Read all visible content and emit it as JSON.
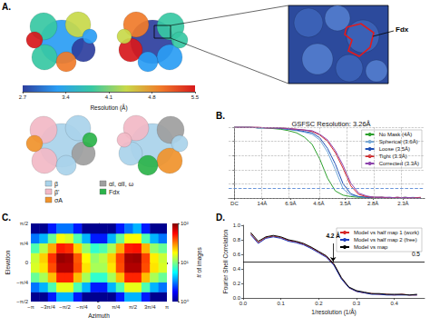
{
  "panel_a": {
    "panel_label": "A.",
    "zoom_label": "Fdx",
    "colorbar": {
      "label": "Resolution (Å)",
      "range": [
        2.7,
        5.5
      ],
      "ticks": [
        2.7,
        3.4,
        4.1,
        4.8,
        5.5
      ]
    },
    "legend": [
      {
        "name": "β",
        "color": "#a9d3ea"
      },
      {
        "name": "β'",
        "color": "#f2b8c6"
      },
      {
        "name": "σA",
        "color": "#f0932b"
      },
      {
        "name": "αI, αII, ω",
        "color": "#9e9e9e"
      },
      {
        "name": "Fdx",
        "color": "#2bb34a"
      }
    ]
  },
  "chart_data": [
    {
      "type": "line",
      "panel_label": "B.",
      "title": "GSFSC Resolution: 3.26Å",
      "x": [
        0,
        0.02,
        0.04,
        0.06,
        0.08,
        0.1,
        0.12,
        0.14,
        0.16,
        0.18,
        0.2,
        0.22,
        0.24,
        0.26,
        0.28,
        0.3,
        0.32,
        0.34,
        0.36,
        0.38,
        0.4,
        0.42,
        0.44,
        0.46,
        0.48
      ],
      "series": [
        {
          "name": "No Mask (4Å)",
          "color": "#2ca02c",
          "values": [
            1,
            1,
            1,
            0.99,
            0.99,
            0.98,
            0.97,
            0.95,
            0.92,
            0.86,
            0.76,
            0.55,
            0.28,
            0.1,
            0.04,
            0.02,
            0.01,
            0.01,
            0,
            0.01,
            0,
            0,
            0.01,
            0,
            0
          ]
        },
        {
          "name": "Spherical (3.6Å)",
          "color": "#6fa8dc",
          "values": [
            1,
            1,
            1,
            0.99,
            0.99,
            0.99,
            0.98,
            0.97,
            0.95,
            0.93,
            0.9,
            0.82,
            0.65,
            0.4,
            0.13,
            0.04,
            0.02,
            0.01,
            0.01,
            0,
            0.01,
            0,
            0,
            0.01,
            0
          ]
        },
        {
          "name": "Loose (3.5Å)",
          "color": "#1f4fb4",
          "values": [
            1,
            1,
            1,
            0.99,
            0.99,
            0.99,
            0.98,
            0.97,
            0.96,
            0.94,
            0.92,
            0.85,
            0.7,
            0.48,
            0.2,
            0.06,
            0.02,
            0.01,
            0.01,
            0.01,
            0,
            0.01,
            0,
            0,
            0
          ]
        },
        {
          "name": "Tight (3.3Å)",
          "color": "#d62728",
          "values": [
            1,
            1,
            1,
            1,
            0.99,
            0.99,
            0.99,
            0.98,
            0.97,
            0.96,
            0.94,
            0.89,
            0.8,
            0.64,
            0.42,
            0.17,
            0.05,
            0.02,
            0.01,
            0.01,
            0,
            0.01,
            0,
            0,
            0.01
          ]
        },
        {
          "name": "Corrected (3.3Å)",
          "color": "#8e44ad",
          "values": [
            1,
            1,
            1,
            1,
            0.99,
            0.99,
            0.99,
            0.98,
            0.97,
            0.96,
            0.95,
            0.9,
            0.82,
            0.67,
            0.46,
            0.21,
            0.07,
            0.03,
            0.01,
            0.01,
            0.01,
            0,
            0.01,
            0,
            0
          ]
        }
      ],
      "xlim": [
        -0.015,
        0.49
      ],
      "xticks": [
        {
          "value": 0,
          "label": "DC"
        },
        {
          "value": 0.0714,
          "label": "14Å"
        },
        {
          "value": 0.1449,
          "label": "6.9Å"
        },
        {
          "value": 0.2174,
          "label": "4.6Å"
        },
        {
          "value": 0.2857,
          "label": "3.5Å"
        },
        {
          "value": 0.3571,
          "label": "2.8Å"
        },
        {
          "value": 0.4348,
          "label": "2.3Å"
        }
      ],
      "ylim": [
        0,
        1
      ],
      "yticks": [
        0,
        0.2,
        0.4,
        0.6,
        0.8,
        1
      ],
      "tick_labels": "x",
      "grid": true,
      "legend": "upper right",
      "threshold": 0.143
    },
    {
      "type": "heatmap",
      "panel_label": "C.",
      "xlabel": "Azimuth",
      "ylabel": "Elevation",
      "x_bins": [
        -3.1416,
        -2.7489,
        -2.3562,
        -1.9635,
        -1.5708,
        -1.1781,
        -0.7854,
        -0.3927,
        0,
        0.3927,
        0.7854,
        1.1781,
        1.5708,
        1.9635,
        2.3562,
        2.7489,
        3.1416
      ],
      "y_bins": [
        -1.5708,
        -1.1781,
        -0.7854,
        -0.3927,
        0,
        0.3927,
        0.7854,
        1.1781,
        1.5708
      ],
      "cells": [
        [
          1,
          1,
          2,
          4,
          4,
          2,
          1,
          1,
          1,
          1,
          2,
          4,
          4,
          2,
          1,
          1
        ],
        [
          3,
          4,
          8,
          16,
          16,
          8,
          4,
          2,
          2,
          4,
          8,
          16,
          16,
          8,
          4,
          3
        ],
        [
          9,
          12,
          24,
          48,
          48,
          24,
          12,
          7,
          7,
          12,
          24,
          48,
          48,
          24,
          12,
          9
        ],
        [
          15,
          20,
          40,
          80,
          80,
          40,
          20,
          12,
          12,
          20,
          40,
          80,
          80,
          40,
          20,
          15
        ],
        [
          14,
          22,
          45,
          90,
          85,
          38,
          18,
          11,
          13,
          22,
          42,
          85,
          88,
          42,
          19,
          14
        ],
        [
          8,
          13,
          26,
          50,
          46,
          22,
          11,
          7,
          8,
          12,
          26,
          50,
          52,
          25,
          11,
          9
        ],
        [
          3,
          4,
          9,
          17,
          15,
          8,
          4,
          2,
          2,
          4,
          9,
          17,
          18,
          8,
          4,
          3
        ],
        [
          1,
          1,
          2,
          3,
          3,
          2,
          1,
          1,
          1,
          1,
          2,
          3,
          4,
          2,
          1,
          1
        ]
      ],
      "xlim": [
        -3.1416,
        3.1416
      ],
      "xticks": [
        {
          "value": -3.1416,
          "label": "−π"
        },
        {
          "value": -2.3562,
          "label": "−3π/4"
        },
        {
          "value": -1.5708,
          "label": "−π/2"
        },
        {
          "value": -0.7854,
          "label": "−π/4"
        },
        0,
        {
          "value": 0.7854,
          "label": "π/4"
        },
        {
          "value": 1.5708,
          "label": "π/2"
        },
        {
          "value": 2.3562,
          "label": "3π/4"
        },
        {
          "value": 3.1416,
          "label": "π"
        }
      ],
      "ylim": [
        -1.5708,
        1.5708
      ],
      "yticks": [
        {
          "value": -1.5708,
          "label": "−π/2"
        },
        {
          "value": -0.7854,
          "label": "−π/4"
        },
        0,
        {
          "value": 0.7854,
          "label": "π/4"
        },
        {
          "value": 1.5708,
          "label": "π/2"
        }
      ],
      "colorbar": {
        "label": "# of images",
        "log": true,
        "range": [
          1,
          100
        ],
        "ticks": [
          {
            "value": 1,
            "label": "10⁰"
          },
          {
            "value": 10,
            "label": "10¹"
          },
          {
            "value": 100,
            "label": "10²"
          }
        ]
      }
    },
    {
      "type": "line",
      "panel_label": "D.",
      "xlabel": "1/resolution (1/Å)",
      "ylabel": "Fourier Shell Correlation",
      "x": [
        0.02,
        0.04,
        0.06,
        0.08,
        0.1,
        0.12,
        0.14,
        0.16,
        0.18,
        0.2,
        0.22,
        0.24,
        0.26,
        0.28,
        0.3,
        0.32,
        0.34,
        0.36,
        0.38,
        0.4,
        0.42,
        0.44,
        0.46
      ],
      "series": [
        {
          "name": "Model vs half map 1 (work)",
          "color": "#d62728",
          "values": [
            0.88,
            0.76,
            0.83,
            0.85,
            0.83,
            0.79,
            0.77,
            0.74,
            0.69,
            0.63,
            0.57,
            0.46,
            0.27,
            0.14,
            0.09,
            0.07,
            0.06,
            0.05,
            0.05,
            0.04,
            0.05,
            0.04,
            0.04
          ]
        },
        {
          "name": "Model vs half map 2 (free)",
          "color": "#1f3fbf",
          "values": [
            0.87,
            0.75,
            0.82,
            0.84,
            0.82,
            0.78,
            0.76,
            0.73,
            0.68,
            0.62,
            0.56,
            0.45,
            0.26,
            0.14,
            0.09,
            0.07,
            0.05,
            0.05,
            0.04,
            0.04,
            0.04,
            0.04,
            0.04
          ]
        },
        {
          "name": "Model vs map",
          "color": "#000000",
          "values": [
            0.9,
            0.78,
            0.84,
            0.86,
            0.84,
            0.8,
            0.78,
            0.75,
            0.7,
            0.64,
            0.58,
            0.47,
            0.28,
            0.15,
            0.1,
            0.08,
            0.06,
            0.06,
            0.05,
            0.05,
            0.05,
            0.04,
            0.05
          ]
        }
      ],
      "xlim": [
        0,
        0.48
      ],
      "xticks": [
        {
          "value": 0,
          "label": "0.0"
        },
        0.1,
        0.2,
        0.3,
        0.4
      ],
      "ylim": [
        0,
        1
      ],
      "yticks": [
        {
          "value": 0,
          "label": "0.0"
        },
        0.2,
        0.4,
        0.6,
        0.8,
        {
          "value": 1,
          "label": "1.0"
        }
      ],
      "grid": false,
      "legend": "upper right",
      "threshold": 0.5,
      "threshold_label": "0.5",
      "annotations": [
        {
          "text": "4.2 Å",
          "x": 0.238,
          "y": 0.5
        }
      ]
    }
  ]
}
